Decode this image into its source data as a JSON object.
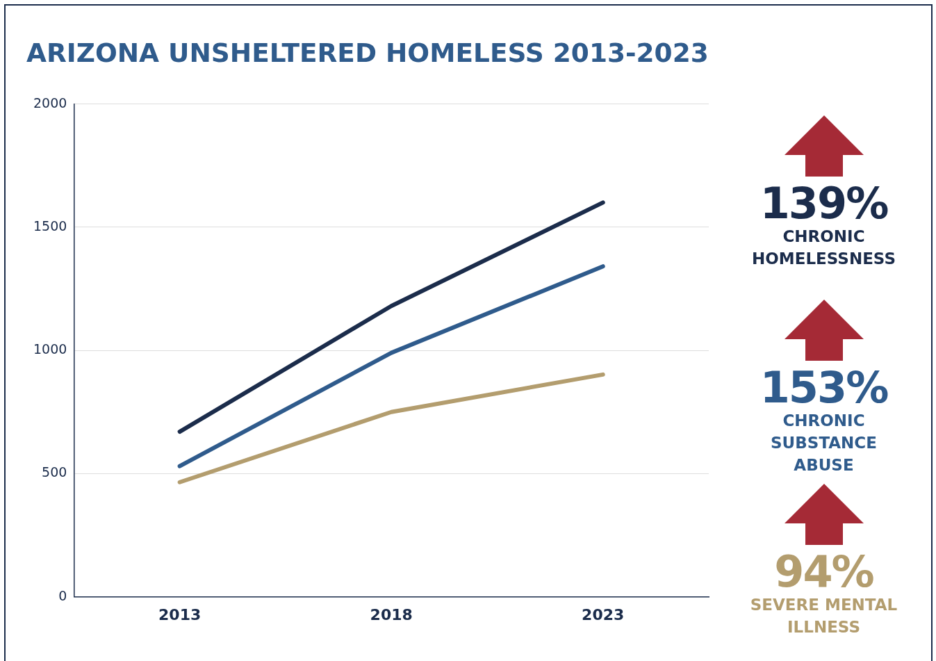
{
  "chart_data": {
    "type": "line",
    "title": "ARIZONA UNSHELTERED HOMELESS 2013-2023",
    "categories": [
      "2013",
      "2018",
      "2023"
    ],
    "series": [
      {
        "name": "CHRONIC HOMELESSNESS",
        "color": "#1b2c4b",
        "values": [
          670,
          1180,
          1600
        ]
      },
      {
        "name": "CHRONIC SUBSTANCE ABUSE",
        "color": "#2f5b8c",
        "values": [
          530,
          990,
          1341
        ]
      },
      {
        "name": "SEVERE MENTAL ILLNESS",
        "color": "#b39d6e",
        "values": [
          465,
          750,
          902
        ]
      }
    ],
    "annotations": [
      "139%",
      "153%",
      "94%"
    ],
    "ylim": [
      0,
      2000
    ],
    "yticks": [
      0,
      500,
      1000,
      1500,
      2000
    ],
    "grid": "y",
    "legend": "right",
    "marker": "none",
    "line_style": "solid"
  }
}
